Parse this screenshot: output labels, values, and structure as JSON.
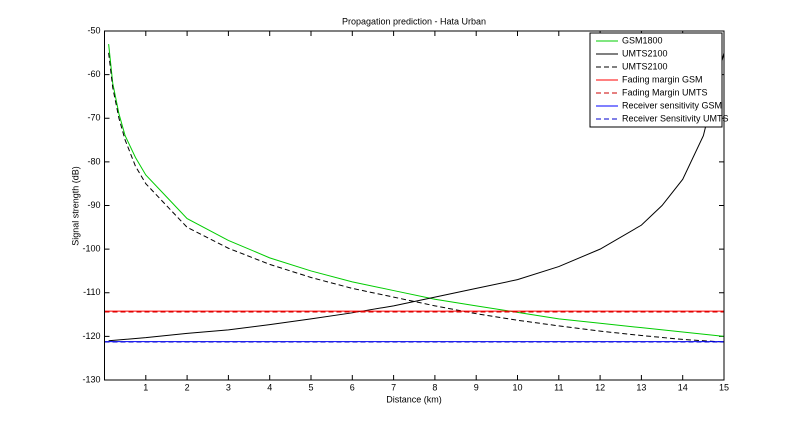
{
  "chart_data": {
    "type": "line",
    "title": "Propagation prediction - Hata Urban",
    "x_label": "Distance (km)",
    "y_label": "Signal strength (dB)",
    "xlim": [
      0,
      15
    ],
    "xticks": [
      1,
      2,
      3,
      4,
      5,
      6,
      7,
      8,
      9,
      10,
      11,
      12,
      13,
      14,
      15
    ],
    "ylim": [
      -130,
      -50
    ],
    "yticks": [
      -130,
      -120,
      -110,
      -100,
      -90,
      -80,
      -70,
      -60,
      -50
    ],
    "legend_position": "top-right",
    "series": [
      {
        "name": "GSM1800",
        "color": "#00cc00",
        "dash": false,
        "x": [
          0.1,
          0.2,
          0.35,
          0.5,
          0.75,
          1,
          1.5,
          2,
          3,
          4,
          5,
          6,
          7,
          8,
          9,
          10,
          11,
          12,
          13,
          14,
          15
        ],
        "values": [
          -53,
          -62,
          -69,
          -74,
          -79,
          -83,
          -88,
          -93,
          -98,
          -102,
          -105,
          -107.5,
          -109.5,
          -111.5,
          -113,
          -114.5,
          -116,
          -117,
          -118,
          -119,
          -120
        ]
      },
      {
        "name": "UMTS2100",
        "color": "#000000",
        "dash": false,
        "x": [
          0.1,
          1,
          2,
          3,
          4,
          5,
          6,
          7,
          8,
          9,
          10,
          11,
          12,
          13,
          13.5,
          14,
          14.5,
          15
        ],
        "values": [
          -121,
          -120.3,
          -119.3,
          -118.5,
          -117.3,
          -116,
          -114.6,
          -113,
          -111,
          -109,
          -107,
          -104,
          -100,
          -94.5,
          -90,
          -84,
          -74,
          -55
        ]
      },
      {
        "name": "UMTS2100",
        "color": "#000000",
        "dash": true,
        "x": [
          0.1,
          0.2,
          0.35,
          0.5,
          0.75,
          1,
          1.5,
          2,
          3,
          4,
          5,
          6,
          7,
          8,
          9,
          10,
          11,
          12,
          13,
          14,
          15
        ],
        "values": [
          -55,
          -63,
          -70,
          -75,
          -81,
          -85,
          -90,
          -95,
          -99.8,
          -103.5,
          -106.5,
          -109,
          -111,
          -113,
          -114.8,
          -116.3,
          -117.6,
          -118.8,
          -119.8,
          -120.7,
          -121.3
        ]
      },
      {
        "name": "Fading margin GSM",
        "color": "#ff0000",
        "dash": false,
        "x": [
          0,
          15
        ],
        "values": [
          -114.2,
          -114.2
        ]
      },
      {
        "name": "Fading Margin UMTS",
        "color": "#cc0000",
        "dash": true,
        "x": [
          0,
          15
        ],
        "values": [
          -114.4,
          -114.4
        ]
      },
      {
        "name": "Receiver sensitivity GSM",
        "color": "#0000ff",
        "dash": false,
        "x": [
          0,
          15
        ],
        "values": [
          -121.2,
          -121.2
        ]
      },
      {
        "name": "Receiver Sensitivity UMTS",
        "color": "#0000cc",
        "dash": true,
        "x": [
          0,
          15
        ],
        "values": [
          -121.3,
          -121.3
        ]
      }
    ]
  }
}
